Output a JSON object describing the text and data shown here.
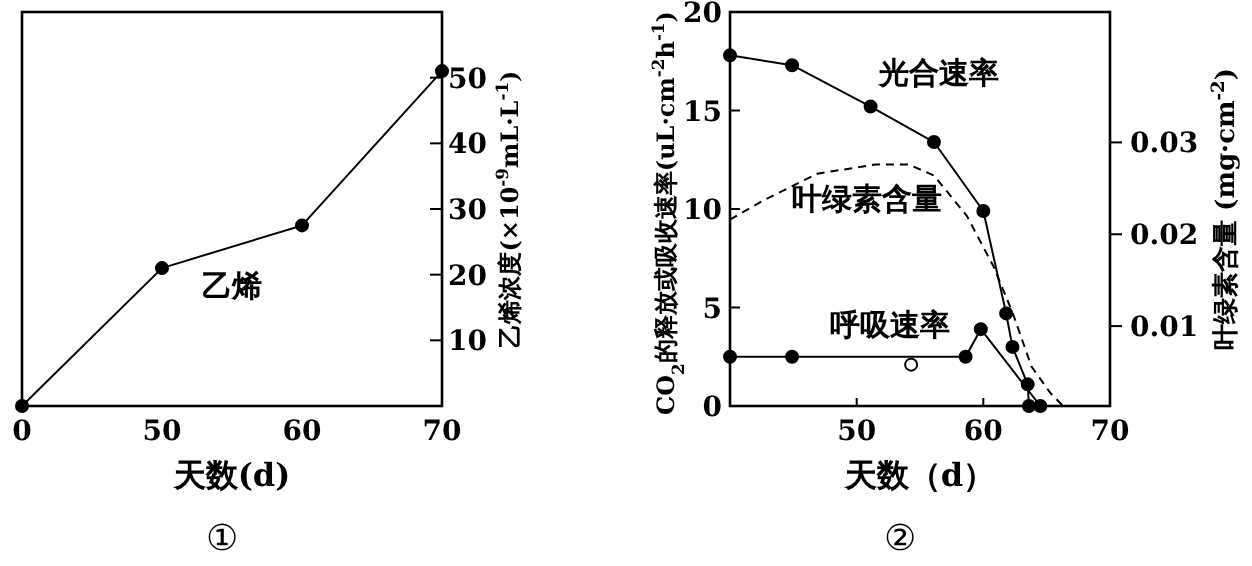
{
  "chart_data": [
    {
      "type": "line",
      "title": "①",
      "xlabel": "天数(d)",
      "ylabel": "乙烯浓度(×10$^{-9}$mL·L$^{-1}$)",
      "categories": [
        "0",
        "50",
        "60",
        "70"
      ],
      "ylim": [
        0,
        60
      ],
      "yticks": [
        10,
        20,
        30,
        40,
        50
      ],
      "grid": false,
      "series": [
        {
          "name": "乙烯",
          "color": "#000000",
          "marker": "circle",
          "values": [
            0,
            21,
            27.5,
            51
          ]
        }
      ]
    },
    {
      "type": "line",
      "title": "②",
      "xlabel": "天数（d）",
      "ylabel": "CO$_{2}$的释放或吸收速率(uL·cm$^{-2}$h$^{-1}$)",
      "y2label": "叶绿素含量 (mg·cm$^{-2}$)",
      "xlim": [
        40,
        70
      ],
      "xticks": [
        {
          "value": 40,
          "label": null
        },
        50,
        60,
        70
      ],
      "ylim": [
        0,
        20
      ],
      "yticks": [
        0,
        5,
        10,
        15,
        20
      ],
      "y2lim": [
        0.0013,
        0.0442
      ],
      "y2ticks": [
        0.01,
        0.02,
        0.03
      ],
      "grid": false,
      "series": [
        {
          "name": "光合速率",
          "color": "#000000",
          "marker": "circle",
          "x": [
            40,
            44.9,
            51.1,
            56.1,
            60,
            61.8,
            62.3,
            63.5,
            63.6
          ],
          "values": [
            17.8,
            17.3,
            15.2,
            13.4,
            9.9,
            4.7,
            3.0,
            1.1,
            0
          ]
        },
        {
          "name": "叶绿素含量",
          "color": "#000000",
          "marker": "none",
          "line_style": "dashed",
          "axis": "y2",
          "x": [
            40,
            42.8,
            46.9,
            51.5,
            54.1,
            56.1,
            58.7,
            60.8,
            62.3,
            63.8,
            65.3,
            66.3
          ],
          "values": [
            0.0216,
            0.0238,
            0.0266,
            0.0276,
            0.0276,
            0.0264,
            0.022,
            0.0165,
            0.0115,
            0.0056,
            0.0027,
            0.0013
          ]
        },
        {
          "name": "呼吸速率",
          "color": "#000000",
          "marker": "circle",
          "x": [
            40,
            44.9,
            58.6,
            59.8,
            64.5
          ],
          "values": [
            2.5,
            2.5,
            2.5,
            3.9,
            0
          ]
        },
        {
          "type": "scatter",
          "color": "#000000",
          "marker": "circle",
          "x": [
            54.3
          ],
          "values": [
            2.1
          ]
        }
      ]
    }
  ]
}
